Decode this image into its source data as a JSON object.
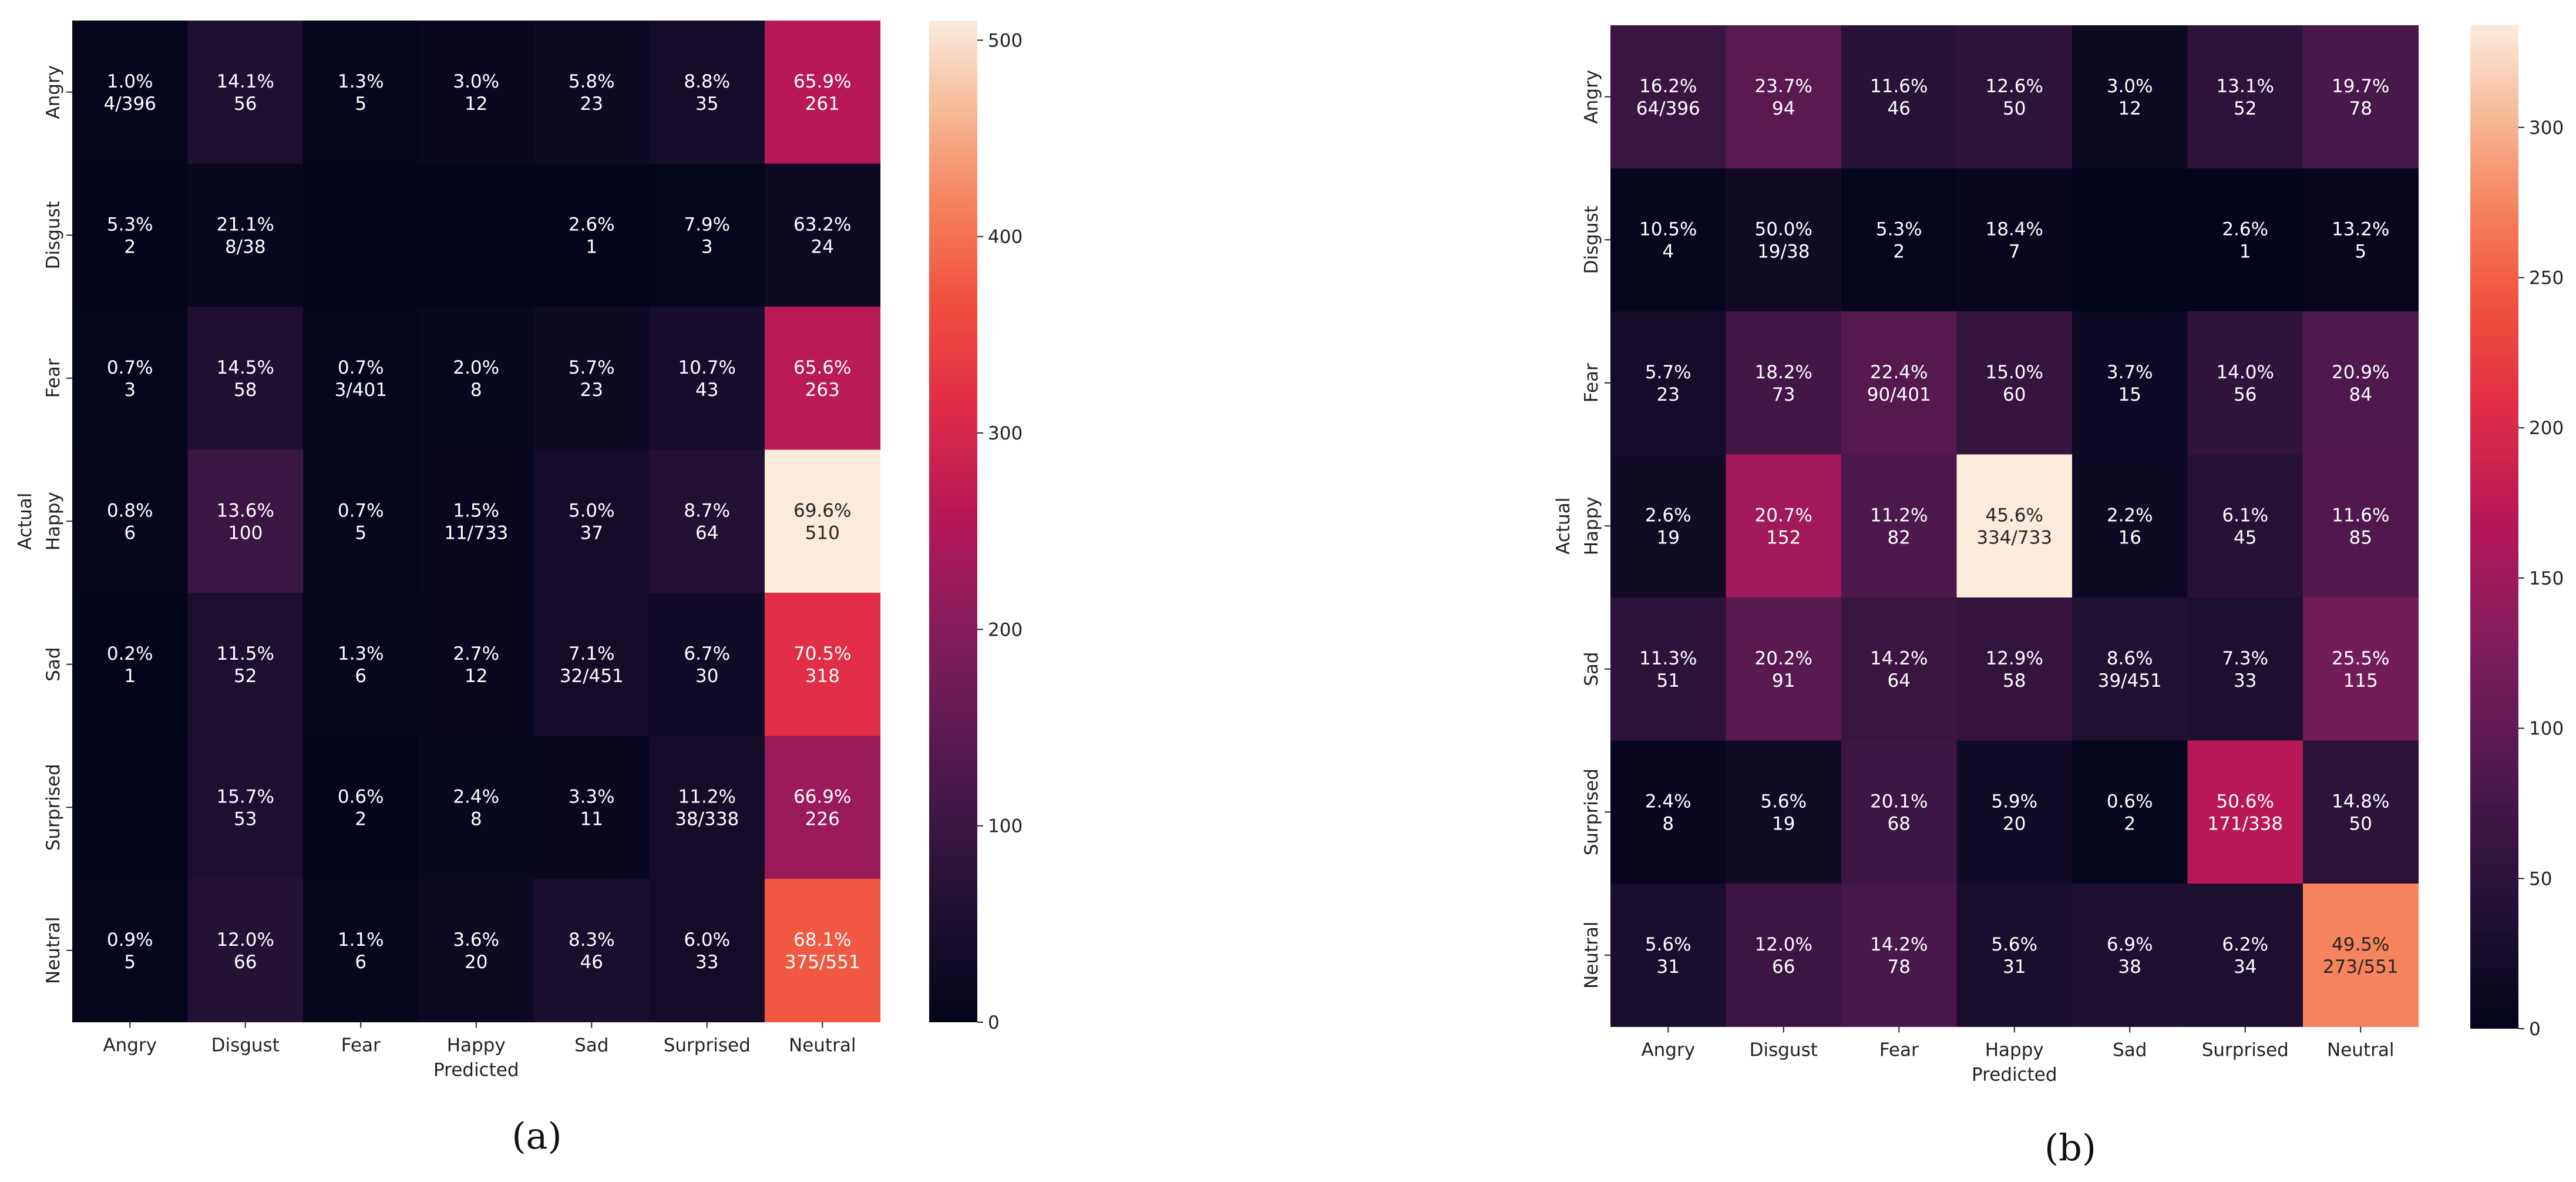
{
  "chart_data": [
    {
      "type": "heatmap",
      "panel_label": "(a)",
      "xlabel": "Predicted",
      "ylabel": "Actual",
      "categories": [
        "Angry",
        "Disgust",
        "Fear",
        "Happy",
        "Sad",
        "Surprised",
        "Neutral"
      ],
      "counts": [
        [
          4,
          56,
          5,
          12,
          23,
          35,
          261
        ],
        [
          2,
          8,
          0,
          0,
          1,
          3,
          24
        ],
        [
          3,
          58,
          3,
          8,
          23,
          43,
          263
        ],
        [
          6,
          100,
          5,
          11,
          37,
          64,
          510
        ],
        [
          1,
          52,
          6,
          12,
          32,
          30,
          318
        ],
        [
          0,
          53,
          2,
          8,
          11,
          38,
          226
        ],
        [
          5,
          66,
          6,
          20,
          46,
          33,
          375
        ]
      ],
      "labels": [
        [
          [
            "1.0%",
            "4/396"
          ],
          [
            "14.1%",
            "56"
          ],
          [
            "1.3%",
            "5"
          ],
          [
            "3.0%",
            "12"
          ],
          [
            "5.8%",
            "23"
          ],
          [
            "8.8%",
            "35"
          ],
          [
            "65.9%",
            "261"
          ]
        ],
        [
          [
            "5.3%",
            "2"
          ],
          [
            "21.1%",
            "8/38"
          ],
          [
            "",
            ""
          ],
          [
            "",
            ""
          ],
          [
            "2.6%",
            "1"
          ],
          [
            "7.9%",
            "3"
          ],
          [
            "63.2%",
            "24"
          ]
        ],
        [
          [
            "0.7%",
            "3"
          ],
          [
            "14.5%",
            "58"
          ],
          [
            "0.7%",
            "3/401"
          ],
          [
            "2.0%",
            "8"
          ],
          [
            "5.7%",
            "23"
          ],
          [
            "10.7%",
            "43"
          ],
          [
            "65.6%",
            "263"
          ]
        ],
        [
          [
            "0.8%",
            "6"
          ],
          [
            "13.6%",
            "100"
          ],
          [
            "0.7%",
            "5"
          ],
          [
            "1.5%",
            "11/733"
          ],
          [
            "5.0%",
            "37"
          ],
          [
            "8.7%",
            "64"
          ],
          [
            "69.6%",
            "510"
          ]
        ],
        [
          [
            "0.2%",
            "1"
          ],
          [
            "11.5%",
            "52"
          ],
          [
            "1.3%",
            "6"
          ],
          [
            "2.7%",
            "12"
          ],
          [
            "7.1%",
            "32/451"
          ],
          [
            "6.7%",
            "30"
          ],
          [
            "70.5%",
            "318"
          ]
        ],
        [
          [
            "",
            ""
          ],
          [
            "15.7%",
            "53"
          ],
          [
            "0.6%",
            "2"
          ],
          [
            "2.4%",
            "8"
          ],
          [
            "3.3%",
            "11"
          ],
          [
            "11.2%",
            "38/338"
          ],
          [
            "66.9%",
            "226"
          ]
        ],
        [
          [
            "0.9%",
            "5"
          ],
          [
            "12.0%",
            "66"
          ],
          [
            "1.1%",
            "6"
          ],
          [
            "3.6%",
            "20"
          ],
          [
            "8.3%",
            "46"
          ],
          [
            "6.0%",
            "33"
          ],
          [
            "68.1%",
            "375/551"
          ]
        ]
      ],
      "colorbar": {
        "vmin": 0,
        "vmax": 510,
        "ticks": [
          0,
          100,
          200,
          300,
          400,
          500
        ]
      },
      "colormap": "rocket"
    },
    {
      "type": "heatmap",
      "panel_label": "(b)",
      "xlabel": "Predicted",
      "ylabel": "Actual",
      "categories": [
        "Angry",
        "Disgust",
        "Fear",
        "Happy",
        "Sad",
        "Surprised",
        "Neutral"
      ],
      "counts": [
        [
          64,
          94,
          46,
          50,
          12,
          52,
          78
        ],
        [
          4,
          19,
          2,
          7,
          0,
          1,
          5
        ],
        [
          23,
          73,
          90,
          60,
          15,
          56,
          84
        ],
        [
          19,
          152,
          82,
          334,
          16,
          45,
          85
        ],
        [
          51,
          91,
          64,
          58,
          39,
          33,
          115
        ],
        [
          8,
          19,
          68,
          20,
          2,
          171,
          50
        ],
        [
          31,
          66,
          78,
          31,
          38,
          34,
          273
        ]
      ],
      "labels": [
        [
          [
            "16.2%",
            "64/396"
          ],
          [
            "23.7%",
            "94"
          ],
          [
            "11.6%",
            "46"
          ],
          [
            "12.6%",
            "50"
          ],
          [
            "3.0%",
            "12"
          ],
          [
            "13.1%",
            "52"
          ],
          [
            "19.7%",
            "78"
          ]
        ],
        [
          [
            "10.5%",
            "4"
          ],
          [
            "50.0%",
            "19/38"
          ],
          [
            "5.3%",
            "2"
          ],
          [
            "18.4%",
            "7"
          ],
          [
            "",
            ""
          ],
          [
            "2.6%",
            "1"
          ],
          [
            "13.2%",
            "5"
          ]
        ],
        [
          [
            "5.7%",
            "23"
          ],
          [
            "18.2%",
            "73"
          ],
          [
            "22.4%",
            "90/401"
          ],
          [
            "15.0%",
            "60"
          ],
          [
            "3.7%",
            "15"
          ],
          [
            "14.0%",
            "56"
          ],
          [
            "20.9%",
            "84"
          ]
        ],
        [
          [
            "2.6%",
            "19"
          ],
          [
            "20.7%",
            "152"
          ],
          [
            "11.2%",
            "82"
          ],
          [
            "45.6%",
            "334/733"
          ],
          [
            "2.2%",
            "16"
          ],
          [
            "6.1%",
            "45"
          ],
          [
            "11.6%",
            "85"
          ]
        ],
        [
          [
            "11.3%",
            "51"
          ],
          [
            "20.2%",
            "91"
          ],
          [
            "14.2%",
            "64"
          ],
          [
            "12.9%",
            "58"
          ],
          [
            "8.6%",
            "39/451"
          ],
          [
            "7.3%",
            "33"
          ],
          [
            "25.5%",
            "115"
          ]
        ],
        [
          [
            "2.4%",
            "8"
          ],
          [
            "5.6%",
            "19"
          ],
          [
            "20.1%",
            "68"
          ],
          [
            "5.9%",
            "20"
          ],
          [
            "0.6%",
            "2"
          ],
          [
            "50.6%",
            "171/338"
          ],
          [
            "14.8%",
            "50"
          ]
        ],
        [
          [
            "5.6%",
            "31"
          ],
          [
            "12.0%",
            "66"
          ],
          [
            "14.2%",
            "78"
          ],
          [
            "5.6%",
            "31"
          ],
          [
            "6.9%",
            "38"
          ],
          [
            "6.2%",
            "34"
          ],
          [
            "49.5%",
            "273/551"
          ]
        ]
      ],
      "colorbar": {
        "vmin": 0,
        "vmax": 334,
        "ticks": [
          0,
          50,
          100,
          150,
          200,
          250,
          300
        ]
      },
      "colormap": "rocket"
    }
  ]
}
